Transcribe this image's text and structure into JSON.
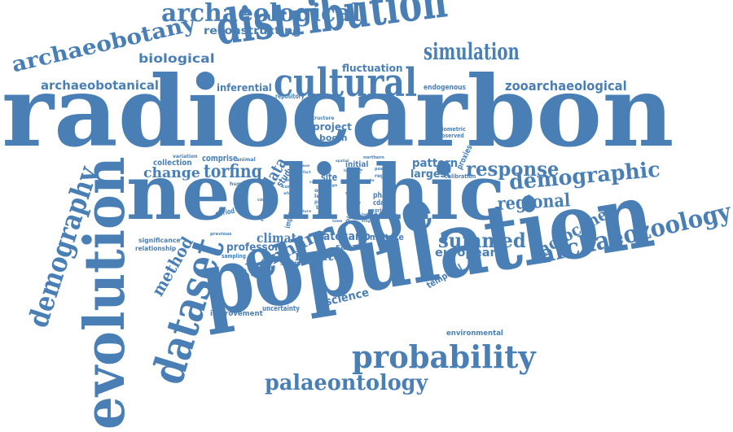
{
  "color": "#4a7fb5",
  "words": {
    "radiocarbon": "radiocarbon",
    "neolithic": "neolithic",
    "population": "population",
    "europe": "europe",
    "evolution": "evolution",
    "distribution": "distribution",
    "cultural": "cultural",
    "dataset": "dataset",
    "demography": "demography",
    "archaeozoology": "archaeozoology",
    "probability": "probability",
    "archaeological": "archaeological",
    "archaeobotany": "archaeobotany",
    "simulation": "simulation",
    "palaeontology": "palaeontology",
    "demographic": "demographic",
    "zooarchaeological": "zooarchaeological",
    "archaeobotanical": "archaeobotanical",
    "summed": "summed",
    "response": "response",
    "regional": "regional",
    "holocene": "holocene",
    "shennan": "shennan",
    "torfing": "torfing",
    "change": "change",
    "biological": "biological",
    "reconstructing": "reconstructing",
    "method": "method",
    "monte": "monte",
    "climate": "climate",
    "european": "european",
    "science": "science",
    "fluctuation": "fluctuation",
    "inferential": "inferential",
    "data": "data",
    "project": "project",
    "pattern": "pattern",
    "largest": "largest",
    "professor": "professor",
    "date": "date",
    "carlo": "carlo",
    "temporal": "temporal",
    "comprise": "comprise",
    "collection": "collection",
    "boom": "boom",
    "endogenous": "endogenous",
    "repository": "repository",
    "site": "site",
    "initial": "initial",
    "study": "study",
    "mistake": "mistake",
    "sahara": "sahara",
    "improvement": "improvement",
    "uncertainty": "uncertainty",
    "environmental": "environmental",
    "period": "period",
    "significance": "significance",
    "relationship": "relationship",
    "sampling": "sampling",
    "sample": "sample",
    "improved": "improved",
    "proxies": "proxies",
    "phase": "phase",
    "cdates": "cdates",
    "primary": "primary",
    "calibration": "calibration",
    "biometric": "biometric",
    "observed": "observed",
    "structure": "structure",
    "variation": "variation",
    "animal": "animal",
    "human": "human",
    "northern": "northern",
    "positive": "positive",
    "region": "region",
    "level": "level",
    "offer": "offer",
    "paper": "paper",
    "bone": "bone",
    "previous": "previous",
    "context": "context",
    "support": "support",
    "collapse": "collapse",
    "result": "result",
    "curve": "curve",
    "dating": "dating",
    "scale": "scale",
    "bronze": "bronze",
    "spatial": "spatial",
    "africa": "africa",
    "age": "age",
    "core": "core",
    "last": "last",
    "role": "role",
    "case": "case",
    "fact": "fact",
    "term": "term",
    "time": "time",
    "stage": "stage",
    "future": "future"
  }
}
